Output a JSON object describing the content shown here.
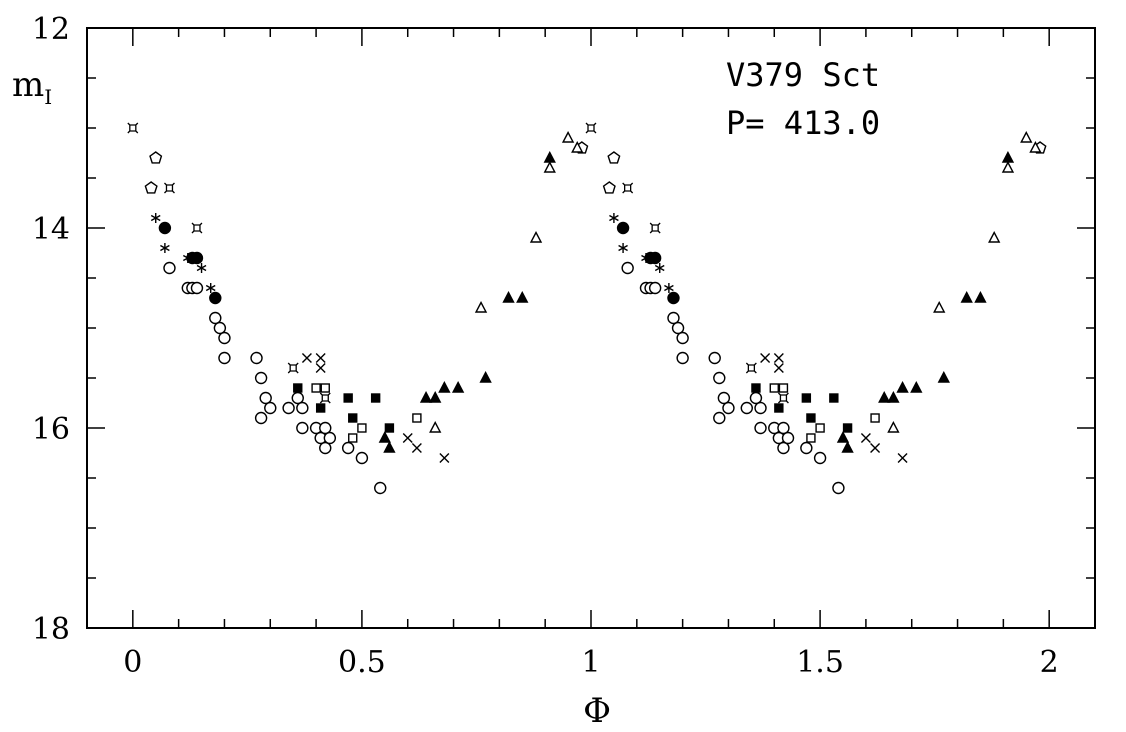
{
  "chart_data": {
    "type": "scatter",
    "title": "V379 Sct",
    "annotations": [
      "V379 Sct",
      "P= 413.0"
    ],
    "xlabel": "Φ",
    "ylabel": "m",
    "ylabel_subscript": "I",
    "xlim": [
      -0.1,
      2.1
    ],
    "ylim": [
      18,
      12
    ],
    "y_inverted": true,
    "grid": false,
    "legend": "none",
    "x_tick_labels": [
      "0",
      "0.5",
      "1",
      "1.5",
      "2"
    ],
    "x_ticks": [
      0,
      0.5,
      1,
      1.5,
      2
    ],
    "y_tick_labels": [
      "12",
      "14",
      "16",
      "18"
    ],
    "y_ticks": [
      12,
      14,
      16,
      18
    ],
    "series": [
      {
        "name": "open-circle",
        "marker": "circle-open",
        "points": [
          [
            0.08,
            14.4
          ],
          [
            0.12,
            14.6
          ],
          [
            0.13,
            14.6
          ],
          [
            0.14,
            14.6
          ],
          [
            0.18,
            14.9
          ],
          [
            0.19,
            15.0
          ],
          [
            0.2,
            15.1
          ],
          [
            0.2,
            15.3
          ],
          [
            0.27,
            15.3
          ],
          [
            0.28,
            15.5
          ],
          [
            0.29,
            15.7
          ],
          [
            0.28,
            15.9
          ],
          [
            0.3,
            15.8
          ],
          [
            0.34,
            15.8
          ],
          [
            0.36,
            15.7
          ],
          [
            0.37,
            15.8
          ],
          [
            0.37,
            16.0
          ],
          [
            0.4,
            16.0
          ],
          [
            0.41,
            16.1
          ],
          [
            0.42,
            16.0
          ],
          [
            0.42,
            16.2
          ],
          [
            0.43,
            16.1
          ],
          [
            0.47,
            16.2
          ],
          [
            0.5,
            16.3
          ],
          [
            0.54,
            16.6
          ]
        ]
      },
      {
        "name": "filled-circle",
        "marker": "circle-filled",
        "points": [
          [
            0.07,
            14.0
          ],
          [
            0.13,
            14.3
          ],
          [
            0.14,
            14.3
          ],
          [
            0.18,
            14.7
          ]
        ]
      },
      {
        "name": "open-pentagon",
        "marker": "pentagon-open",
        "points": [
          [
            0.05,
            13.3
          ],
          [
            0.04,
            13.6
          ],
          [
            0.98,
            13.2
          ]
        ]
      },
      {
        "name": "asterisk",
        "marker": "asterisk",
        "points": [
          [
            0.05,
            13.9
          ],
          [
            0.07,
            14.2
          ],
          [
            0.12,
            14.3
          ],
          [
            0.15,
            14.4
          ],
          [
            0.17,
            14.6
          ]
        ]
      },
      {
        "name": "star-square",
        "marker": "starsquare",
        "points": [
          [
            0.0,
            13.0
          ],
          [
            0.08,
            13.6
          ],
          [
            0.14,
            14.0
          ],
          [
            0.35,
            15.4
          ],
          [
            0.42,
            15.7
          ]
        ]
      },
      {
        "name": "cross",
        "marker": "cross",
        "points": [
          [
            0.38,
            15.3
          ],
          [
            0.41,
            15.3
          ],
          [
            0.41,
            15.4
          ],
          [
            0.6,
            16.1
          ],
          [
            0.62,
            16.2
          ],
          [
            0.68,
            16.3
          ]
        ]
      },
      {
        "name": "open-square",
        "marker": "square-open",
        "points": [
          [
            0.4,
            15.6
          ],
          [
            0.42,
            15.6
          ],
          [
            0.48,
            16.1
          ],
          [
            0.5,
            16.0
          ],
          [
            0.62,
            15.9
          ]
        ]
      },
      {
        "name": "filled-square",
        "marker": "square-filled",
        "points": [
          [
            0.36,
            15.6
          ],
          [
            0.41,
            15.8
          ],
          [
            0.47,
            15.7
          ],
          [
            0.48,
            15.9
          ],
          [
            0.53,
            15.7
          ],
          [
            0.56,
            16.0
          ]
        ]
      },
      {
        "name": "filled-triangle",
        "marker": "triangle-filled",
        "points": [
          [
            0.55,
            16.1
          ],
          [
            0.56,
            16.2
          ],
          [
            0.64,
            15.7
          ],
          [
            0.66,
            15.7
          ],
          [
            0.68,
            15.6
          ],
          [
            0.71,
            15.6
          ],
          [
            0.77,
            15.5
          ],
          [
            0.82,
            14.7
          ],
          [
            0.85,
            14.7
          ],
          [
            0.91,
            13.3
          ]
        ]
      },
      {
        "name": "open-triangle",
        "marker": "triangle-open",
        "points": [
          [
            0.66,
            16.0
          ],
          [
            0.76,
            14.8
          ],
          [
            0.88,
            14.1
          ],
          [
            0.91,
            13.4
          ],
          [
            0.95,
            13.1
          ],
          [
            0.97,
            13.2
          ]
        ]
      }
    ]
  }
}
